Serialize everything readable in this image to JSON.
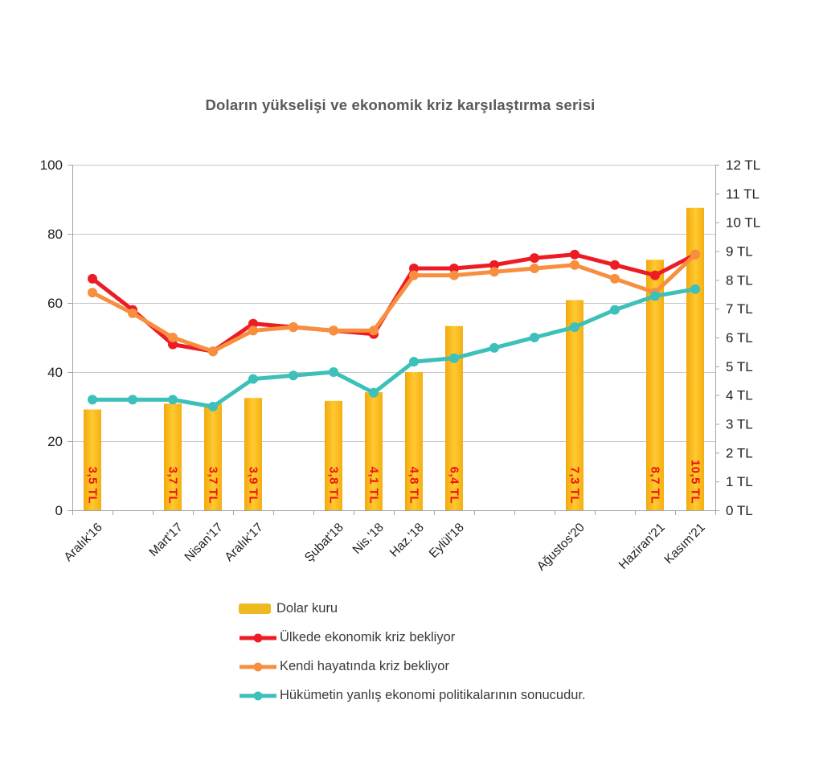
{
  "title": "Doların yükselişi ve ekonomik kriz karşılaştırma serisi",
  "chart_data": {
    "type": "combo-bar-line",
    "title": "Doların yükselişi ve ekonomik kriz karşılaştırma serisi",
    "categories": [
      "Aralık'16",
      "Mart'17",
      "Nisan'17",
      "Aralık'17",
      "Şubat'18",
      "Nis.'18",
      "Haz.'18",
      "Eylül'18",
      "Ağustos'20",
      "Haziran'21",
      "Kasım'21"
    ],
    "category_slots": [
      0,
      2,
      3,
      4,
      6,
      7,
      8,
      9,
      12,
      14,
      15
    ],
    "total_slots": 16,
    "grid": "horizontal-major",
    "legend_position": "bottom",
    "bars": {
      "name": "Dolar kuru",
      "axis": "right",
      "unit": "TL",
      "values": [
        3.5,
        3.7,
        3.7,
        3.9,
        3.8,
        4.1,
        4.8,
        6.4,
        7.3,
        8.7,
        10.5
      ],
      "labels": [
        "3,5 TL",
        "3,7 TL",
        "3,7 TL",
        "3,9 TL",
        "3,8 TL",
        "4,1 TL",
        "4,8 TL",
        "6,4 TL",
        "7,3 TL",
        "8,7 TL",
        "10,5 TL"
      ],
      "color": "#FBB919",
      "label_color": "#EE1111"
    },
    "series": [
      {
        "name": "Ülkede ekonomik kriz bekliyor",
        "axis": "left",
        "color": "#ED1C24",
        "values_by_slot": [
          67,
          58,
          48,
          46,
          54,
          53,
          52,
          51,
          70,
          70,
          71,
          73,
          74,
          71,
          68,
          74
        ]
      },
      {
        "name": "Kendi hayatında kriz bekliyor",
        "axis": "left",
        "color": "#F78F3F",
        "values_by_slot": [
          63,
          57,
          50,
          46,
          52,
          53,
          52,
          52,
          68,
          68,
          69,
          70,
          71,
          67,
          63,
          74
        ]
      },
      {
        "name": "Hükümetin yanlış ekonomi politikalarının sonucudur.",
        "axis": "left",
        "color": "#3CC0B9",
        "values_by_slot": [
          32,
          32,
          32,
          30,
          38,
          39,
          40,
          34,
          43,
          44,
          47,
          50,
          53,
          58,
          62,
          64
        ]
      }
    ],
    "left_axis": {
      "min": 0,
      "max": 100,
      "step": 20,
      "ticks": [
        "0",
        "20",
        "40",
        "60",
        "80",
        "100"
      ]
    },
    "right_axis": {
      "min": 0,
      "max": 12,
      "step": 1,
      "ticks": [
        "0 TL",
        "1 TL",
        "2 TL",
        "3 TL",
        "4 TL",
        "5 TL",
        "6 TL",
        "7 TL",
        "8 TL",
        "9 TL",
        "10 TL",
        "11 TL",
        "12 TL"
      ]
    }
  },
  "legend": {
    "items": [
      {
        "label": "Dolar kuru",
        "marker": "bar",
        "color": "#EDBA1F"
      },
      {
        "label": "Ülkede ekonomik kriz bekliyor",
        "marker": "line-dot",
        "color": "#ED1C24"
      },
      {
        "label": "Kendi hayatında kriz bekliyor",
        "marker": "line-dot",
        "color": "#F78F3F"
      },
      {
        "label": "Hükümetin yanlış ekonomi politikalarının sonucudur.",
        "marker": "line-dot",
        "color": "#3CC0B9"
      }
    ]
  }
}
